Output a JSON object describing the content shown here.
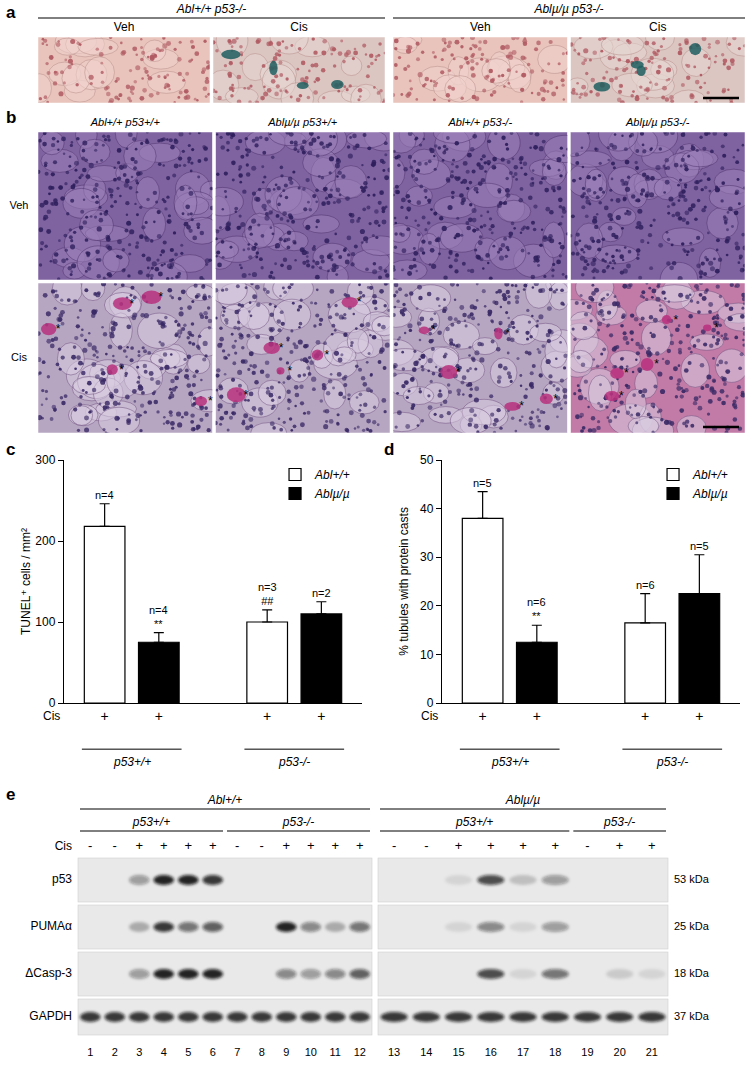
{
  "panels": {
    "a": {
      "label": "a",
      "groups": [
        {
          "text": "Abl+/+ p53-/-",
          "columns": [
            "Veh",
            "Cis"
          ]
        },
        {
          "text": "Ablµ/µ p53-/-",
          "columns": [
            "Veh",
            "Cis"
          ]
        }
      ]
    },
    "b": {
      "label": "b",
      "columns": [
        "Abl+/+ p53+/+",
        "Ablµ/µ p53+/+",
        "Abl+/+ p53-/-",
        "Ablµ/µ p53-/-"
      ],
      "rows": [
        "Veh",
        "Cis"
      ],
      "cast_marker": "*"
    },
    "e": {
      "label": "e",
      "lanes": [
        1,
        2,
        3,
        4,
        5,
        6,
        7,
        8,
        9,
        10,
        11,
        12,
        13,
        14,
        15,
        16,
        17,
        18,
        19,
        20,
        21
      ],
      "groups": [
        {
          "text": "Abl+/+",
          "first_lane": 1,
          "last_lane": 12,
          "subgroups": [
            {
              "text": "p53+/+",
              "first_lane": 1,
              "last_lane": 6
            },
            {
              "text": "p53-/-",
              "first_lane": 7,
              "last_lane": 12
            }
          ]
        },
        {
          "text": "Ablµ/µ",
          "first_lane": 13,
          "last_lane": 21,
          "subgroups": [
            {
              "text": "p53+/+",
              "first_lane": 13,
              "last_lane": 18
            },
            {
              "text": "p53-/-",
              "first_lane": 19,
              "last_lane": 21
            }
          ]
        }
      ],
      "treatment": {
        "label": "Cis",
        "marks": [
          "-",
          "-",
          "+",
          "+",
          "+",
          "+",
          "-",
          "-",
          "+",
          "+",
          "+",
          "+",
          "-",
          "-",
          "+",
          "+",
          "+",
          "+",
          "-",
          "+",
          "+"
        ]
      },
      "rows": [
        {
          "name": "p53",
          "size": "53 kDa",
          "intensity": [
            0,
            0,
            0.4,
            1,
            1,
            0.9,
            0,
            0,
            0,
            0,
            0,
            0,
            0,
            0,
            0.1,
            0.8,
            0.2,
            0.4,
            0,
            0,
            0
          ]
        },
        {
          "name": "PUMAα",
          "size": "25 kDa",
          "intensity": [
            0,
            0,
            0.3,
            0.9,
            0.6,
            0.7,
            0,
            0,
            1,
            0.5,
            0.3,
            0.6,
            0,
            0,
            0.1,
            0.5,
            0.1,
            0.4,
            0,
            0,
            0
          ]
        },
        {
          "name": "ΔCasp-3",
          "size": "18 kDa",
          "intensity": [
            0,
            0,
            0.4,
            1,
            1,
            1,
            0,
            0,
            0.5,
            0.4,
            0.5,
            0.7,
            0,
            0,
            0,
            0.8,
            0.1,
            0.6,
            0,
            0.15,
            0.1
          ]
        },
        {
          "name": "GAPDH",
          "size": "37 kDa",
          "intensity": [
            0.9,
            0.9,
            0.9,
            0.9,
            0.9,
            0.9,
            0.9,
            0.9,
            0.9,
            0.9,
            0.9,
            0.9,
            0.9,
            0.9,
            0.9,
            0.9,
            0.9,
            0.9,
            0.9,
            0.9,
            0.9
          ]
        }
      ]
    }
  },
  "chart_data": [
    {
      "type": "bar",
      "panel": "c",
      "ylabel": "TUNEL⁺ cells / mm²",
      "categories": [
        "p53+/+",
        "p53-/-"
      ],
      "row_label": "Cis",
      "row_marks": [
        [
          "+",
          "+"
        ],
        [
          "+",
          "+"
        ]
      ],
      "series": [
        {
          "name": "Abl+/+",
          "color": "#ffffff",
          "values": [
            218,
            100
          ],
          "errors": [
            28,
            15
          ],
          "n_labels": [
            "n=4",
            "n=3"
          ],
          "significance": [
            null,
            "##"
          ]
        },
        {
          "name": "Ablµ/µ",
          "color": "#000000",
          "values": [
            75,
            110
          ],
          "errors": [
            12,
            15
          ],
          "n_labels": [
            "n=4",
            "n=2"
          ],
          "significance": [
            "**",
            null
          ]
        }
      ],
      "ylim": [
        0,
        300
      ],
      "yticks": [
        0,
        100,
        200,
        300
      ],
      "grid": false,
      "legend": "upper right"
    },
    {
      "type": "bar",
      "panel": "d",
      "ylabel": "% tubules with protein casts",
      "categories": [
        "p53+/+",
        "p53-/-"
      ],
      "row_label": "Cis",
      "row_marks": [
        [
          "+",
          "+"
        ],
        [
          "+",
          "+"
        ]
      ],
      "series": [
        {
          "name": "Abl+/+",
          "color": "#ffffff",
          "values": [
            38,
            16.5
          ],
          "errors": [
            5.5,
            6
          ],
          "n_labels": [
            "n=5",
            "n=6"
          ],
          "significance": [
            null,
            null
          ]
        },
        {
          "name": "Ablµ/µ",
          "color": "#000000",
          "values": [
            12.5,
            22.5
          ],
          "errors": [
            3.5,
            8
          ],
          "n_labels": [
            "n=6",
            "n=5"
          ],
          "significance": [
            "**",
            null
          ]
        }
      ],
      "ylim": [
        0,
        50
      ],
      "yticks": [
        0,
        10,
        20,
        30,
        40,
        50
      ],
      "grid": false,
      "legend": "upper right"
    }
  ]
}
